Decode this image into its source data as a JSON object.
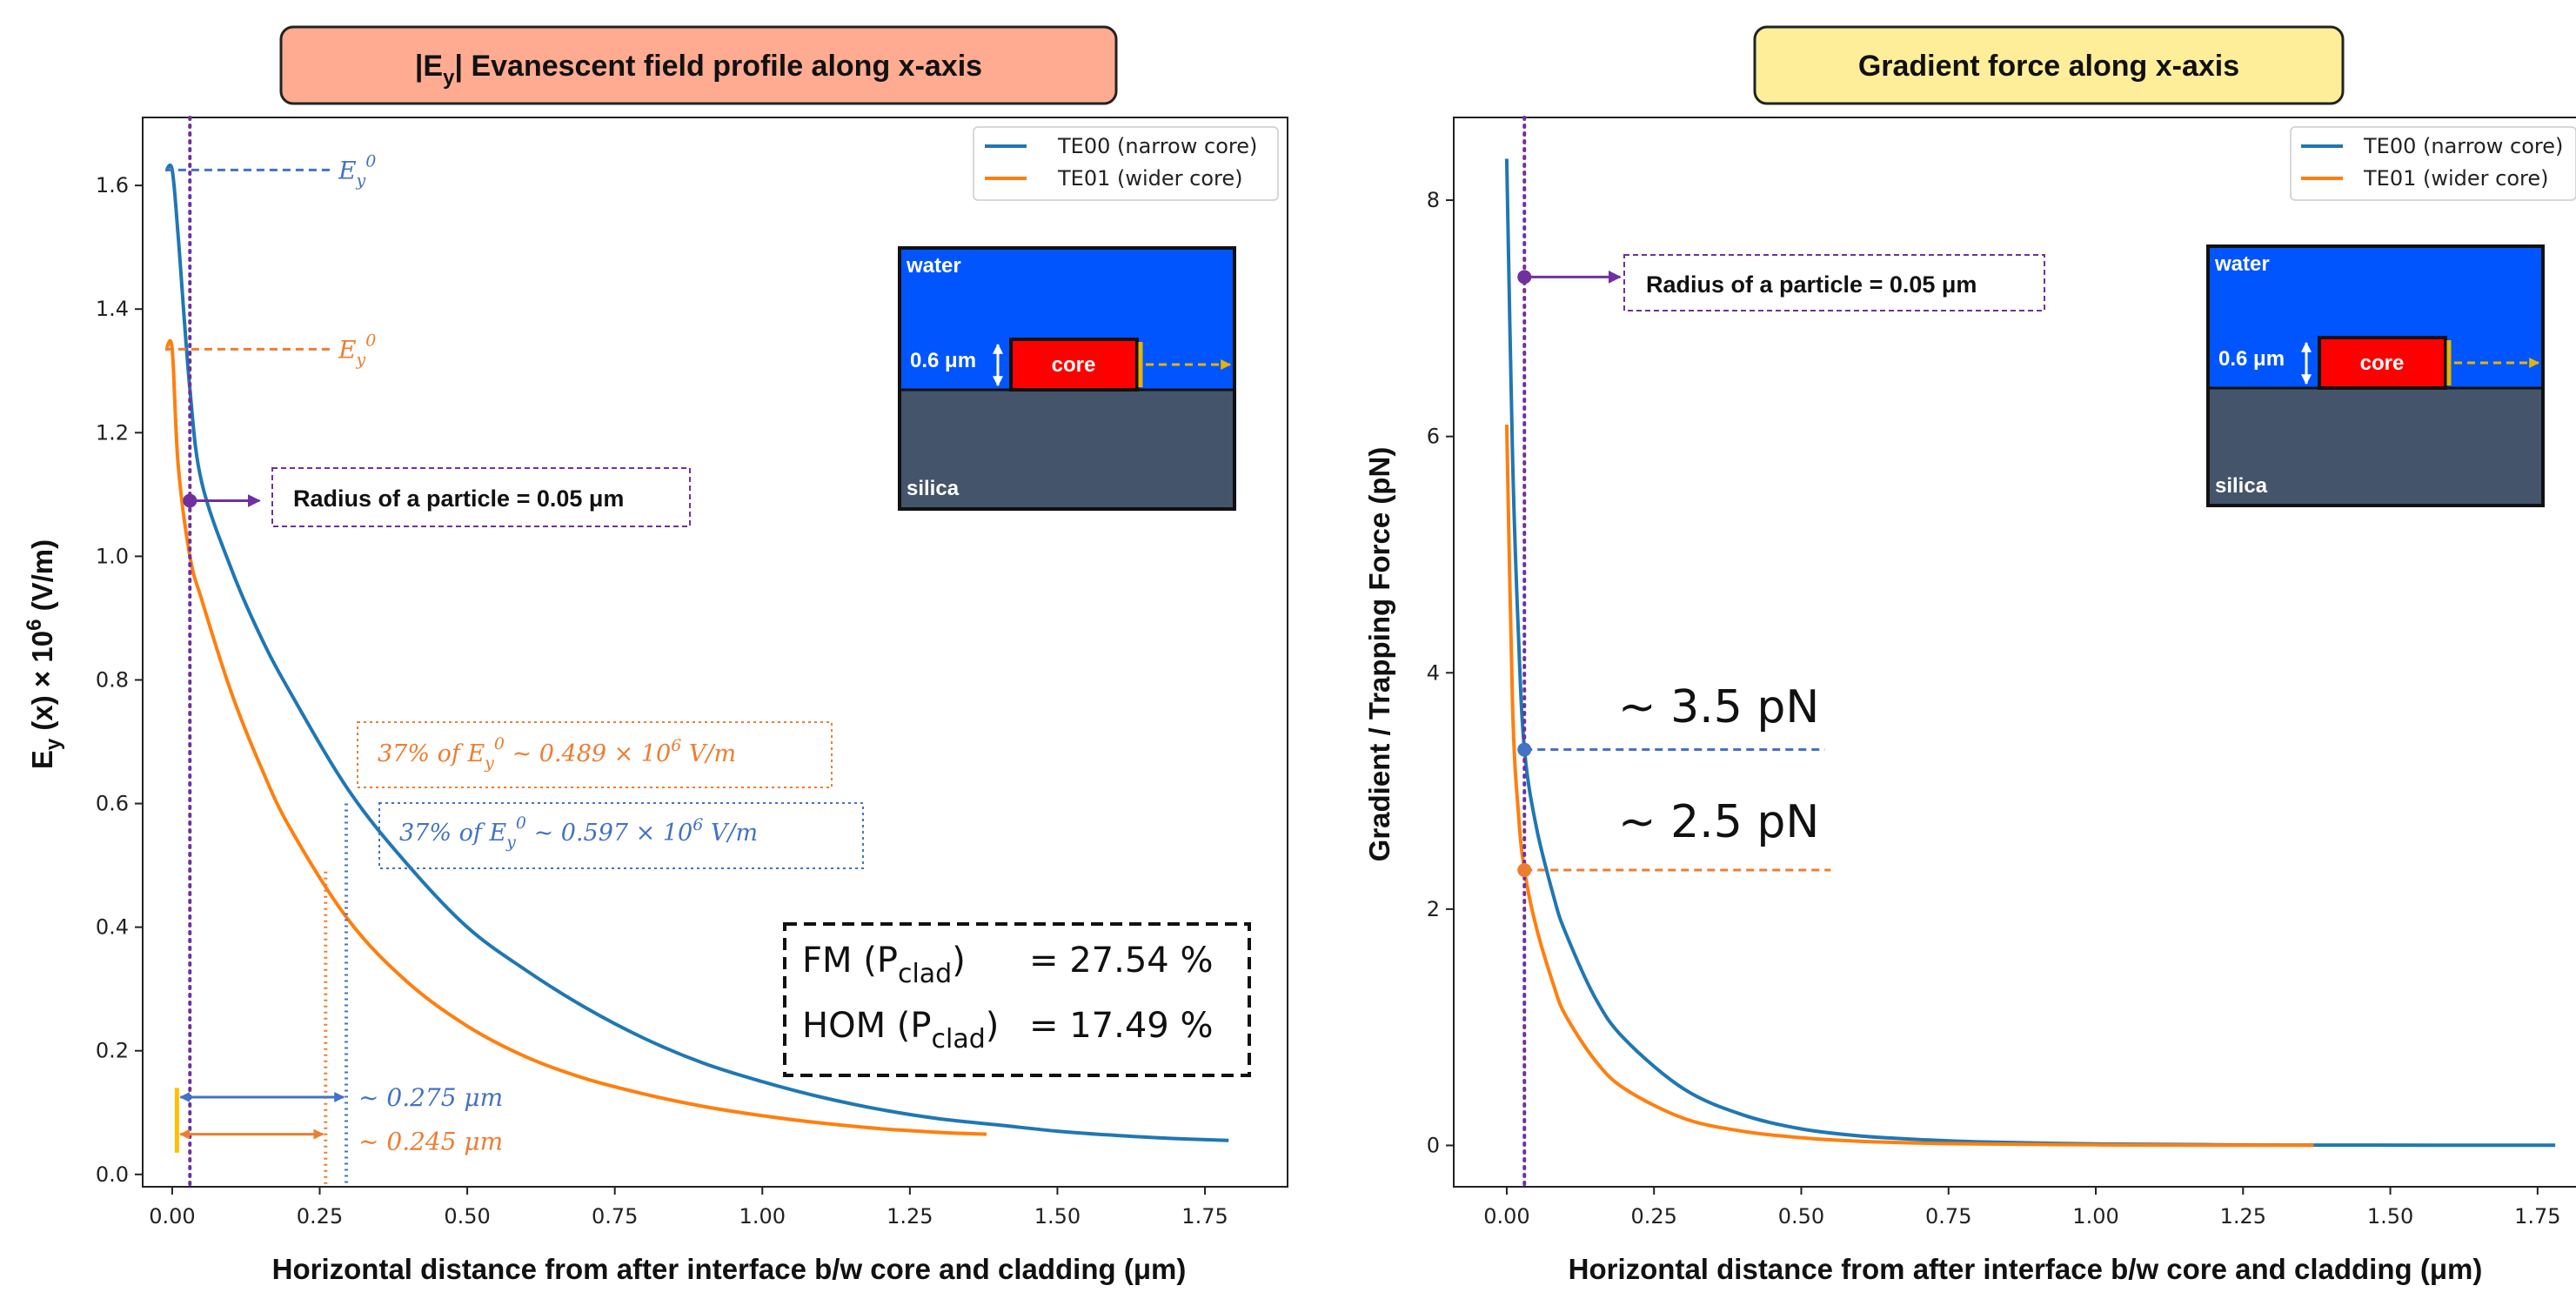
{
  "colors": {
    "te00": "#1f77b4",
    "te01": "#ff7f0e",
    "marker_purple": "#7030a0",
    "inset_water": "#0055ff",
    "inset_silica": "#44546a",
    "inset_core": "#ff0000",
    "inset_arrow": "#e6b400",
    "note_blue": "#4472c4",
    "note_orange": "#ed7d31",
    "left_title_bg": "#ffab91",
    "right_title_bg": "#ffee99"
  },
  "chart_data": [
    {
      "type": "line",
      "title": "|Ey| Evanescent field profile along x-axis",
      "title_main": "|E",
      "title_sub": "y",
      "title_rest": "| Evanescent field profile along x-axis",
      "xlabel": "Horizontal distance from after interface b/w core and cladding (μm)",
      "ylabel": "Ey (x) × 10⁶ (V/m)",
      "ylabel_parts": {
        "a": "E",
        "a_sub": "y",
        "b": " (x) × 10",
        "b_sup": "6",
        "c": " (V/m)"
      },
      "xlim": [
        -0.05,
        1.89
      ],
      "ylim": [
        -0.02,
        1.71
      ],
      "x_ticks": [
        "0.00",
        "0.25",
        "0.50",
        "0.75",
        "1.00",
        "1.25",
        "1.50",
        "1.75"
      ],
      "x_tick_values": [
        0,
        0.25,
        0.5,
        0.75,
        1.0,
        1.25,
        1.5,
        1.75
      ],
      "y_ticks": [
        "0.0",
        "0.2",
        "0.4",
        "0.6",
        "0.8",
        "1.0",
        "1.2",
        "1.4",
        "1.6"
      ],
      "y_tick_values": [
        0,
        0.2,
        0.4,
        0.6,
        0.8,
        1.0,
        1.2,
        1.4,
        1.6
      ],
      "legend": [
        "TE00 (narrow core)",
        "TE01 (wider core)"
      ],
      "legend_position": "top-right",
      "series": [
        {
          "name": "TE00 (narrow core)",
          "x": [
            -0.01,
            0.0,
            0.01,
            0.03,
            0.05,
            0.1,
            0.15,
            0.2,
            0.3,
            0.4,
            0.5,
            0.6,
            0.7,
            0.8,
            0.9,
            1.0,
            1.1,
            1.2,
            1.3,
            1.4,
            1.5,
            1.6,
            1.7,
            1.79
          ],
          "y": [
            1.625,
            1.625,
            1.52,
            1.27,
            1.12,
            0.98,
            0.87,
            0.78,
            0.62,
            0.5,
            0.4,
            0.33,
            0.27,
            0.22,
            0.18,
            0.15,
            0.125,
            0.105,
            0.09,
            0.08,
            0.07,
            0.063,
            0.058,
            0.055
          ]
        },
        {
          "name": "TE01 (wider core)",
          "x": [
            -0.01,
            0.0,
            0.01,
            0.03,
            0.05,
            0.1,
            0.15,
            0.2,
            0.3,
            0.4,
            0.5,
            0.6,
            0.7,
            0.8,
            0.9,
            1.0,
            1.1,
            1.2,
            1.3,
            1.38
          ],
          "y": [
            1.335,
            1.335,
            1.15,
            1.0,
            0.93,
            0.78,
            0.66,
            0.56,
            0.41,
            0.31,
            0.24,
            0.19,
            0.155,
            0.13,
            0.11,
            0.095,
            0.083,
            0.074,
            0.068,
            0.065
          ]
        }
      ],
      "annotations": {
        "e0_label": "E",
        "e0_sub": "y",
        "e0_sup": "0",
        "te00_peak": 1.625,
        "te01_peak": 1.335,
        "radius_note": "Radius of a particle = 0.05 μm",
        "radius_x": 0.03,
        "radius_y": 1.09,
        "note_orange_pre": "37% of ",
        "note_orange_post": " ~ 0.489 × 10",
        "note_orange_tail": " V/m",
        "note_blue_pre": "37% of ",
        "note_blue_post": " ~ 0.597 × 10",
        "note_blue_tail": " V/m",
        "sup6": "6",
        "te00_decay_x": 0.295,
        "te01_decay_x": 0.26,
        "te00_arrow_label": "~ 0.275 μm",
        "te01_arrow_label": "~ 0.245 μm",
        "box_fm": "FM (P",
        "box_hom": "HOM (P",
        "box_sub": "clad",
        "box_close": ")",
        "box_fm_value": "=  27.54 %",
        "box_hom_value": "=  17.49 %"
      }
    },
    {
      "type": "line",
      "title": "Gradient force along x-axis",
      "xlabel": "Horizontal distance from after interface b/w core and cladding (μm)",
      "ylabel": "Gradient  / Trapping  Force (pN)",
      "xlim": [
        -0.09,
        1.83
      ],
      "ylim": [
        -0.35,
        8.7
      ],
      "x_ticks": [
        "0.00",
        "0.25",
        "0.50",
        "0.75",
        "1.00",
        "1.25",
        "1.50",
        "1.75"
      ],
      "x_tick_values": [
        0,
        0.25,
        0.5,
        0.75,
        1.0,
        1.25,
        1.5,
        1.75
      ],
      "y_ticks": [
        "0",
        "2",
        "4",
        "6",
        "8"
      ],
      "y_tick_values": [
        0,
        2,
        4,
        6,
        8
      ],
      "legend": [
        "TE00 (narrow core)",
        "TE01 (wider core)"
      ],
      "legend_position": "top-right",
      "series": [
        {
          "name": "TE00 (narrow core)",
          "x": [
            0.0,
            0.01,
            0.02,
            0.03,
            0.05,
            0.08,
            0.1,
            0.15,
            0.2,
            0.3,
            0.4,
            0.5,
            0.6,
            0.7,
            0.8,
            1.0,
            1.2,
            1.4,
            1.6,
            1.78
          ],
          "y": [
            8.35,
            5.8,
            4.3,
            3.35,
            2.7,
            2.1,
            1.8,
            1.25,
            0.9,
            0.48,
            0.26,
            0.14,
            0.08,
            0.05,
            0.03,
            0.012,
            0.006,
            0.003,
            0.002,
            0.001
          ]
        },
        {
          "name": "TE01 (wider core)",
          "x": [
            0.0,
            0.01,
            0.02,
            0.03,
            0.05,
            0.08,
            0.1,
            0.15,
            0.2,
            0.3,
            0.4,
            0.5,
            0.6,
            0.7,
            0.8,
            1.0,
            1.2,
            1.37
          ],
          "y": [
            6.1,
            3.7,
            2.8,
            2.33,
            1.85,
            1.35,
            1.1,
            0.72,
            0.48,
            0.23,
            0.12,
            0.065,
            0.035,
            0.02,
            0.012,
            0.005,
            0.002,
            0.001
          ]
        }
      ],
      "annotations": {
        "radius_note": "Radius of a particle = 0.05 μm",
        "radius_x": 0.03,
        "radius_y": 7.35,
        "te00_force_label": "~ 3.5 pN",
        "te01_force_label": "~ 2.5 pN",
        "te00_force_y": 3.35,
        "te01_force_y": 2.33
      }
    }
  ],
  "inset": {
    "water": "water",
    "silica": "silica",
    "core": "core",
    "thickness": "0.6 μm"
  }
}
